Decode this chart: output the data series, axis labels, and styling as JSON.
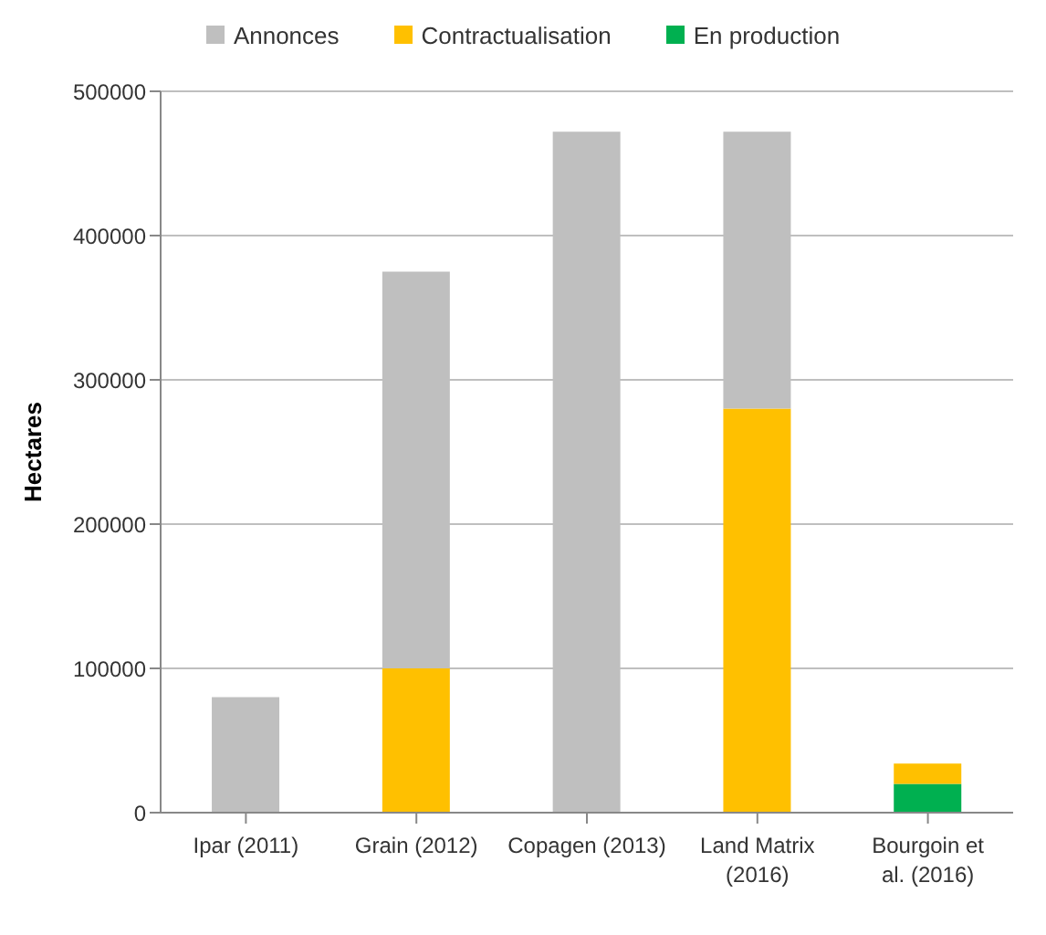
{
  "chart_data": {
    "type": "bar",
    "stacked": true,
    "ylabel": "Hectares",
    "categories": [
      "Ipar (2011)",
      "Grain (2012)",
      "Copagen (2013)",
      "Land Matrix (2016)",
      "Bourgoin et al. (2016)"
    ],
    "series": [
      {
        "name": "En production",
        "color": "#00b050",
        "values": [
          null,
          null,
          null,
          null,
          20000
        ]
      },
      {
        "name": "Contractualisation",
        "color": "#ffc000",
        "values": [
          null,
          100000,
          null,
          280000,
          14000
        ]
      },
      {
        "name": "Annonces",
        "color": "#bfbfbf",
        "values": [
          80000,
          275000,
          472000,
          192000,
          null
        ]
      }
    ],
    "ylim": [
      0,
      500000
    ],
    "yticks": [
      0,
      100000,
      200000,
      300000,
      400000,
      500000
    ],
    "grid": "y",
    "legend": "top"
  }
}
